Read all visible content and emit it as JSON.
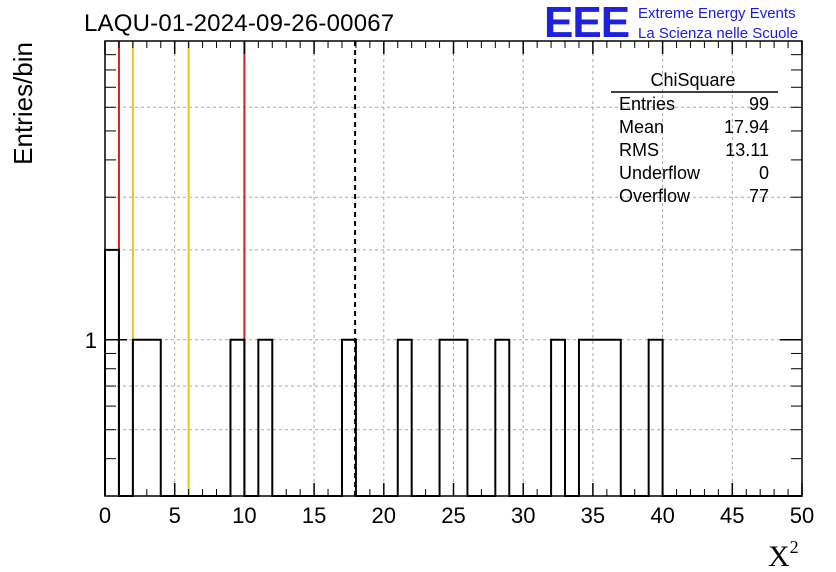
{
  "chart_data": {
    "type": "bar",
    "title": "LAQU-01-2024-09-26-00067",
    "xlabel": "X",
    "xlabel_sup": "2",
    "ylabel": "Entries/bin",
    "xlim": [
      0,
      50
    ],
    "ylim_log": [
      0.3,
      10
    ],
    "yscale": "log",
    "bin_width": 1,
    "grid": true,
    "x_ticks": [
      0,
      5,
      10,
      15,
      20,
      25,
      30,
      35,
      40,
      45,
      50
    ],
    "y_ticks": [
      1
    ],
    "bins": [
      {
        "x": 0,
        "value": 2
      },
      {
        "x": 2,
        "value": 1
      },
      {
        "x": 3,
        "value": 1
      },
      {
        "x": 9,
        "value": 1
      },
      {
        "x": 11,
        "value": 1
      },
      {
        "x": 17,
        "value": 1
      },
      {
        "x": 21,
        "value": 1
      },
      {
        "x": 24,
        "value": 1
      },
      {
        "x": 25,
        "value": 1
      },
      {
        "x": 28,
        "value": 1
      },
      {
        "x": 32,
        "value": 1
      },
      {
        "x": 34,
        "value": 1
      },
      {
        "x": 35,
        "value": 1
      },
      {
        "x": 36,
        "value": 1
      },
      {
        "x": 39,
        "value": 1
      }
    ],
    "vertical_lines": [
      {
        "x": 1,
        "color": "#d42020",
        "style": "solid"
      },
      {
        "x": 2,
        "color": "#f0c020",
        "style": "solid"
      },
      {
        "x": 6,
        "color": "#f0c020",
        "style": "solid"
      },
      {
        "x": 10,
        "color": "#d42020",
        "style": "solid"
      },
      {
        "x": 17.94,
        "color": "#000000",
        "style": "dashed"
      }
    ],
    "stats_box": {
      "title": "ChiSquare",
      "rows": [
        {
          "label": "Entries",
          "value": "99"
        },
        {
          "label": "Mean",
          "value": "17.94"
        },
        {
          "label": "RMS",
          "value": "13.11"
        },
        {
          "label": "Underflow",
          "value": "0"
        },
        {
          "label": "Overflow",
          "value": "77"
        }
      ]
    }
  },
  "logo": {
    "mark": "EEE",
    "line1": "Extreme Energy Events",
    "line2": "La Scienza nelle Scuole",
    "color": "#1a1ae6"
  }
}
